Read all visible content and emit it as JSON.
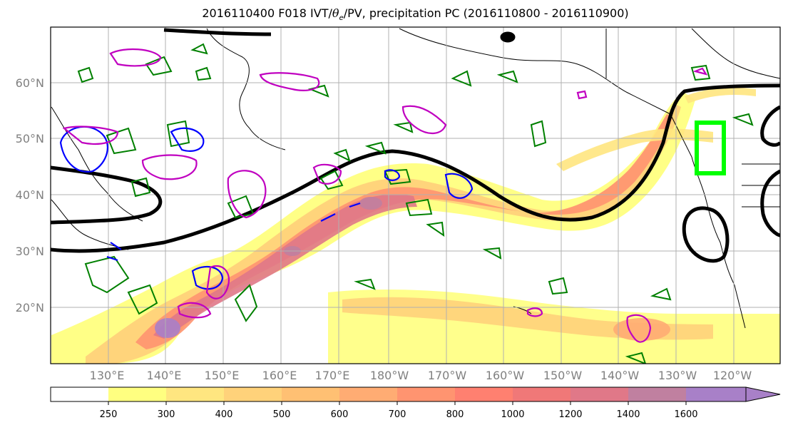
{
  "title": {
    "prefix": "2016110400 F018 IVT/",
    "theta": "θ",
    "theta_sub": "e",
    "suffix": "/PV, precipitation PC (2016110800 - 2016110900)"
  },
  "map": {
    "lat_labels": [
      "60°N",
      "50°N",
      "40°N",
      "30°N",
      "20°N"
    ],
    "lon_labels": [
      "130°E",
      "140°E",
      "150°E",
      "160°E",
      "170°E",
      "180°W",
      "170°W",
      "160°W",
      "150°W",
      "140°W",
      "130°W",
      "120°W"
    ],
    "colors": {
      "ocean": "#ffffff",
      "coastline": "#000000",
      "grid": "#b0b0b0",
      "theta_e_contour": "#000000",
      "pv_positive": "#008000",
      "pv_negative": "#0000ff",
      "pv_magenta": "#c000c0",
      "box": "#00ff00"
    }
  },
  "colorbar": {
    "ticks": [
      "250",
      "300",
      "400",
      "500",
      "600",
      "700",
      "800",
      "1000",
      "1200",
      "1400",
      "1600"
    ],
    "colors": [
      "#ffffff",
      "#ffff80",
      "#ffe680",
      "#ffd27a",
      "#ffc073",
      "#ffac73",
      "#ff9470",
      "#ff8070",
      "#f07878",
      "#e07888",
      "#c080a0",
      "#a880c8"
    ]
  }
}
